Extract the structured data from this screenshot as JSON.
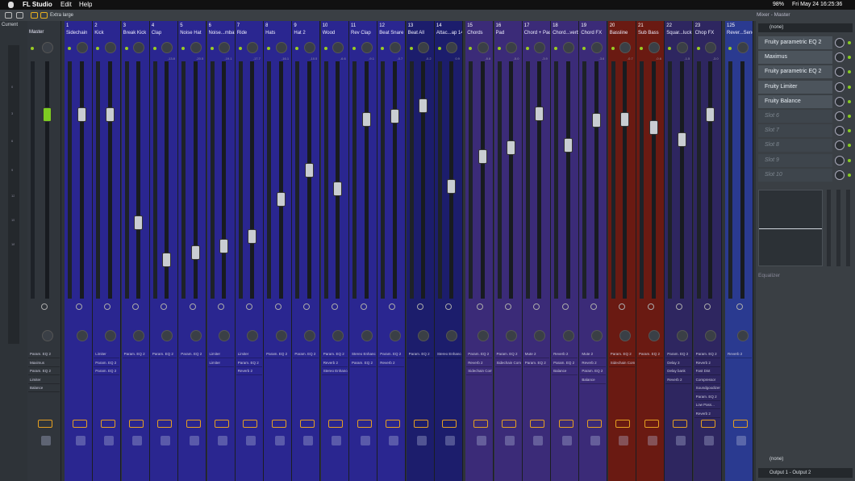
{
  "menu": {
    "app": "FL Studio",
    "items": [
      "Edit",
      "Help"
    ],
    "battery": "98%",
    "datetime": "Fri May 24  16:25:36"
  },
  "toolbar": {
    "zoom": "Extra large"
  },
  "mixer": {
    "current": "Current",
    "scale": [
      "0",
      "3",
      "6",
      "9",
      "12",
      "15",
      "18"
    ],
    "master": {
      "name": "Master",
      "effects": [
        "Param. EQ 2",
        "Maximus",
        "Param. EQ 2",
        "Limiter",
        "Balance"
      ]
    },
    "tracks": [
      {
        "number": "1",
        "name": "Sidechain"
      },
      {
        "number": "2",
        "name": "Kick",
        "effects": [
          "Limiter",
          "Param. EQ 2",
          "Param. EQ 2"
        ]
      },
      {
        "number": "3",
        "name": "Break Kick",
        "effects": [
          "Param. EQ 2"
        ]
      },
      {
        "number": "4",
        "name": "Clap",
        "level": "-13.8",
        "effects": [
          "Param. EQ 2"
        ]
      },
      {
        "number": "5",
        "name": "Noise Hat",
        "level": "-20.5",
        "effects": [
          "Param. EQ 2"
        ]
      },
      {
        "number": "6",
        "name": "Noise...mbal",
        "level": "-19.1",
        "effects": [
          "Limiter",
          "Limiter"
        ]
      },
      {
        "number": "7",
        "name": "Ride",
        "level": "-17.7",
        "effects": [
          "Limiter",
          "Param. EQ 2",
          "Reverb 2"
        ]
      },
      {
        "number": "8",
        "name": "Hats",
        "level": "-16.1",
        "effects": [
          "Param. EQ 2"
        ]
      },
      {
        "number": "9",
        "name": "Hat 2",
        "level": "-10.5",
        "effects": [
          "Param. EQ 2"
        ]
      },
      {
        "number": "10",
        "name": "Wood",
        "level": "-6.6",
        "effects": [
          "Param. EQ 2",
          "Reverb 2",
          "Stereo Enhancer"
        ]
      },
      {
        "number": "11",
        "name": "Rev Clap",
        "level": "-9.1",
        "effects": [
          "Stereo Enhancer",
          "Param. EQ 2"
        ]
      },
      {
        "number": "12",
        "name": "Beat Snare",
        "level": "-0.7",
        "effects": [
          "Param. EQ 2",
          "Reverb 2"
        ]
      },
      {
        "number": "13",
        "name": "Beat All",
        "level": "-0.2",
        "effects": [
          "Param. EQ 2"
        ]
      },
      {
        "number": "14",
        "name": "Attac...ap 14",
        "level": "0.9",
        "effects": [
          "Stereo Enhancer"
        ]
      },
      {
        "number": "15",
        "name": "Chords",
        "level": "-8.8",
        "effects": [
          "Param. EQ 2",
          "Reverb 2",
          "Sidechain Comp"
        ]
      },
      {
        "number": "16",
        "name": "Pad",
        "level": "-5.0",
        "effects": [
          "Param. EQ 2",
          "Sidechain Comp"
        ]
      },
      {
        "number": "17",
        "name": "Chord + Pad",
        "level": "-3.9",
        "effects": [
          "Mute 2",
          "Param. EQ 2"
        ]
      },
      {
        "number": "18",
        "name": "Chord...verb",
        "effects": [
          "Reverb 2",
          "Param. EQ 2",
          "Balance"
        ]
      },
      {
        "number": "19",
        "name": "Chord FX",
        "level": "-3.6",
        "effects": [
          "Mute 2",
          "Reverb 2",
          "Param. EQ 2",
          "Balance"
        ]
      },
      {
        "number": "20",
        "name": "Bassline",
        "level": "-0.7",
        "effects": [
          "Param. EQ 2",
          "Sidechain Comp"
        ]
      },
      {
        "number": "21",
        "name": "Sub Bass",
        "level": "-0.6",
        "effects": [
          "Param. EQ 2"
        ]
      },
      {
        "number": "22",
        "name": "Squar...luck",
        "level": "-1.5",
        "effects": [
          "Param. EQ 2",
          "Delay 3",
          "Delay bank",
          "Reverb 2"
        ]
      },
      {
        "number": "23",
        "name": "Chop FX",
        "level": "-3.0",
        "effects": [
          "Param. EQ 2",
          "Reverb 2",
          "Fast Dist",
          "Compressor",
          "Soundgoodizer",
          "Param. EQ 2",
          "Low Pass...",
          "Reverb 2"
        ]
      },
      {
        "number": "125",
        "name": "Rever...Send",
        "effects": [
          "Reverb 2"
        ]
      }
    ]
  },
  "panel": {
    "title": "Mixer - Master",
    "input": "(none)",
    "slots": [
      "Fruity parametric EQ 2",
      "Maximus",
      "Fruity parametric EQ 2",
      "Fruity Limiter",
      "Fruity Balance",
      "Slot 6",
      "Slot 7",
      "Slot 8",
      "Slot 9",
      "Slot 10"
    ],
    "section": "Equalizer",
    "sidechain": "(none)",
    "output": "Output 1 - Output 2"
  }
}
